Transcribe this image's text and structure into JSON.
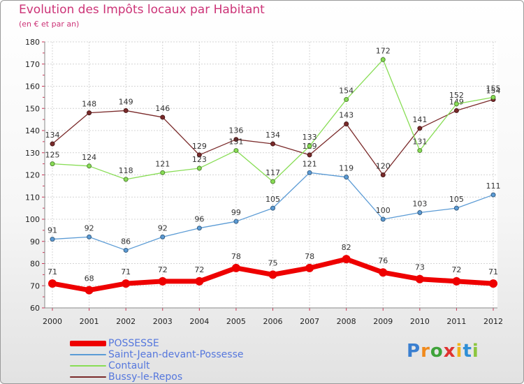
{
  "title": "Evolution des Impôts locaux par Habitant",
  "subtitle": "(en € et par an)",
  "logo": {
    "text": "Proxiti",
    "colors": [
      "#3a7fd0",
      "#f08a1c",
      "#3fa33a",
      "#e0322f",
      "#f0b418",
      "#2f8fd6",
      "#8cc63f"
    ]
  },
  "chart_data": {
    "type": "line",
    "title": "Evolution des Impôts locaux par Habitant",
    "subtitle": "(en € et par an)",
    "xlabel": "",
    "ylabel": "",
    "x": [
      "2000",
      "2001",
      "2002",
      "2003",
      "2004",
      "2005",
      "2006",
      "2007",
      "2008",
      "2009",
      "2010",
      "2011",
      "2012"
    ],
    "ylim": [
      60,
      180
    ],
    "yticks": [
      "60",
      "70",
      "80",
      "90",
      "100",
      "110",
      "120",
      "130",
      "140",
      "150",
      "160",
      "170",
      "180"
    ],
    "grid": true,
    "legend_position": "bottom-left",
    "series": [
      {
        "name": "POSSESSE",
        "color": "#ee0000",
        "values": [
          71,
          68,
          71,
          72,
          72,
          78,
          75,
          78,
          82,
          76,
          73,
          72,
          71
        ],
        "labels": [
          "71",
          "68",
          "71",
          "72",
          "72",
          "78",
          "75",
          "78",
          "82",
          "76",
          "73",
          "72",
          "71"
        ]
      },
      {
        "name": "Saint-Jean-devant-Possesse",
        "color": "#5b9bd5",
        "values": [
          91,
          92,
          86,
          92,
          96,
          99,
          105,
          121,
          119,
          100,
          103,
          105,
          111
        ],
        "labels": [
          "91",
          "92",
          "86",
          "92",
          "96",
          "99",
          "105",
          "121",
          "119",
          "100",
          "103",
          "105",
          "111"
        ]
      },
      {
        "name": "Contault",
        "color": "#88dd55",
        "values": [
          125,
          124,
          118,
          121,
          123,
          131,
          117,
          133,
          154,
          172,
          131,
          152,
          155
        ],
        "labels": [
          "125",
          "124",
          "118",
          "121",
          "123",
          "131",
          "117",
          "133",
          "154",
          "172",
          "131",
          "152",
          "155"
        ]
      },
      {
        "name": "Bussy-le-Repos",
        "color": "#7a2a2a",
        "values": [
          134,
          148,
          149,
          146,
          129,
          136,
          134,
          129,
          143,
          120,
          141,
          149,
          154
        ],
        "labels": [
          "134",
          "148",
          "149",
          "146",
          "129",
          "136",
          "134",
          "129",
          "143",
          "120",
          "141",
          "149",
          "154"
        ]
      }
    ]
  }
}
